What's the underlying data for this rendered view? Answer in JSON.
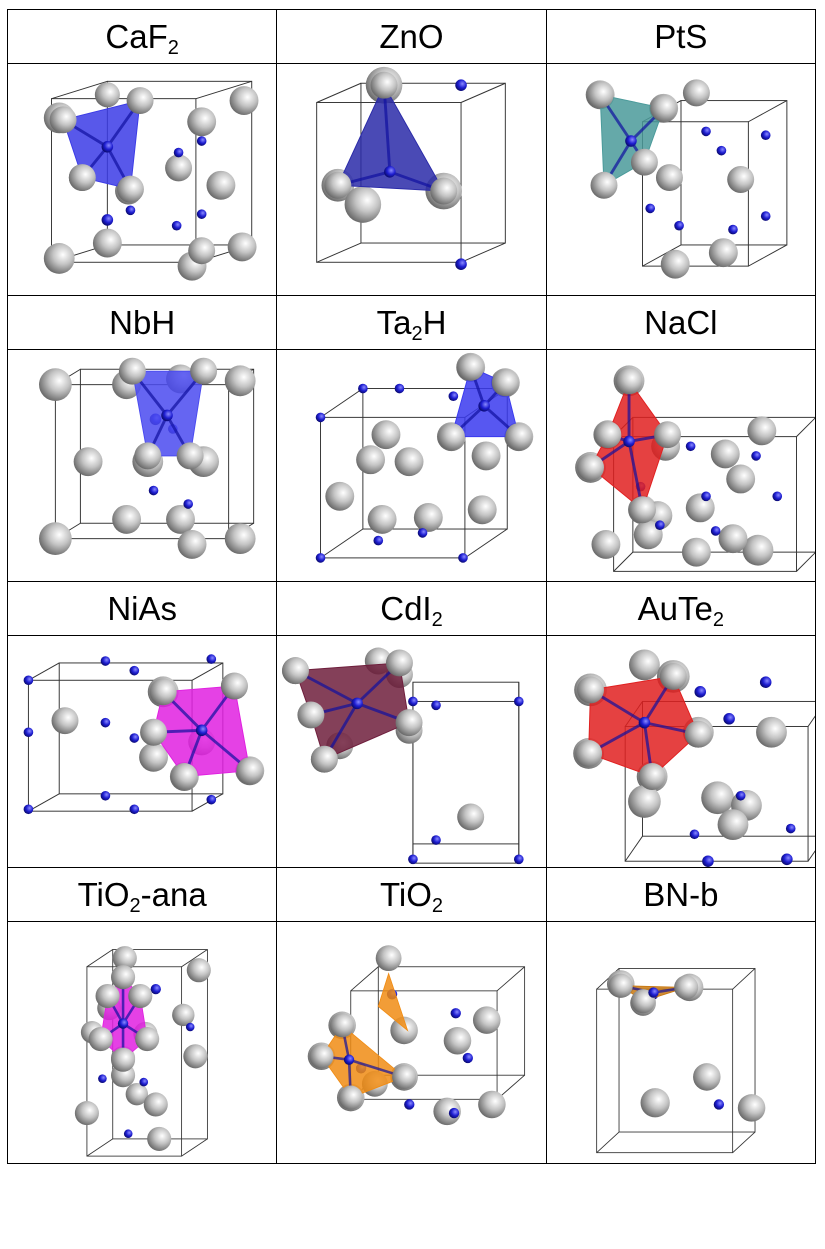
{
  "cells": [
    {
      "name": "CaF2",
      "label": [
        "CaF",
        "2",
        ""
      ],
      "poly_color": "#3b3be6"
    },
    {
      "name": "ZnO",
      "label": [
        "ZnO",
        "",
        ""
      ],
      "poly_color": "#2a2aa8"
    },
    {
      "name": "PtS",
      "label": [
        "PtS",
        "",
        ""
      ],
      "poly_color": "#4a9a9a"
    },
    {
      "name": "NbH",
      "label": [
        "NbH",
        "",
        ""
      ],
      "poly_color": "#4a4af0"
    },
    {
      "name": "Ta2H",
      "label": [
        "Ta",
        "2",
        "H"
      ],
      "poly_color": "#3a3aee"
    },
    {
      "name": "NaCl",
      "label": [
        "NaCl",
        "",
        ""
      ],
      "poly_color": "#e02020"
    },
    {
      "name": "NiAs",
      "label": [
        "NiAs",
        "",
        ""
      ],
      "poly_color": "#e020e0"
    },
    {
      "name": "CdI2",
      "label": [
        "CdI",
        "2",
        ""
      ],
      "poly_color": "#6e1e3c"
    },
    {
      "name": "AuTe2",
      "label": [
        "AuTe",
        "2",
        ""
      ],
      "poly_color": "#e02020"
    },
    {
      "name": "TiO2-ana",
      "label": [
        "TiO",
        "2",
        "-ana"
      ],
      "poly_color": "#e020e0"
    },
    {
      "name": "TiO2",
      "label": [
        "TiO",
        "2",
        ""
      ],
      "poly_color": "#f08c14"
    },
    {
      "name": "BN-b",
      "label": [
        "BN-b",
        "",
        ""
      ],
      "poly_color": "#c87810"
    }
  ],
  "colors": {
    "gray_atom": "#9a9a9a",
    "blue_atom": "#1a1acc",
    "cell_edge": "#333333"
  }
}
